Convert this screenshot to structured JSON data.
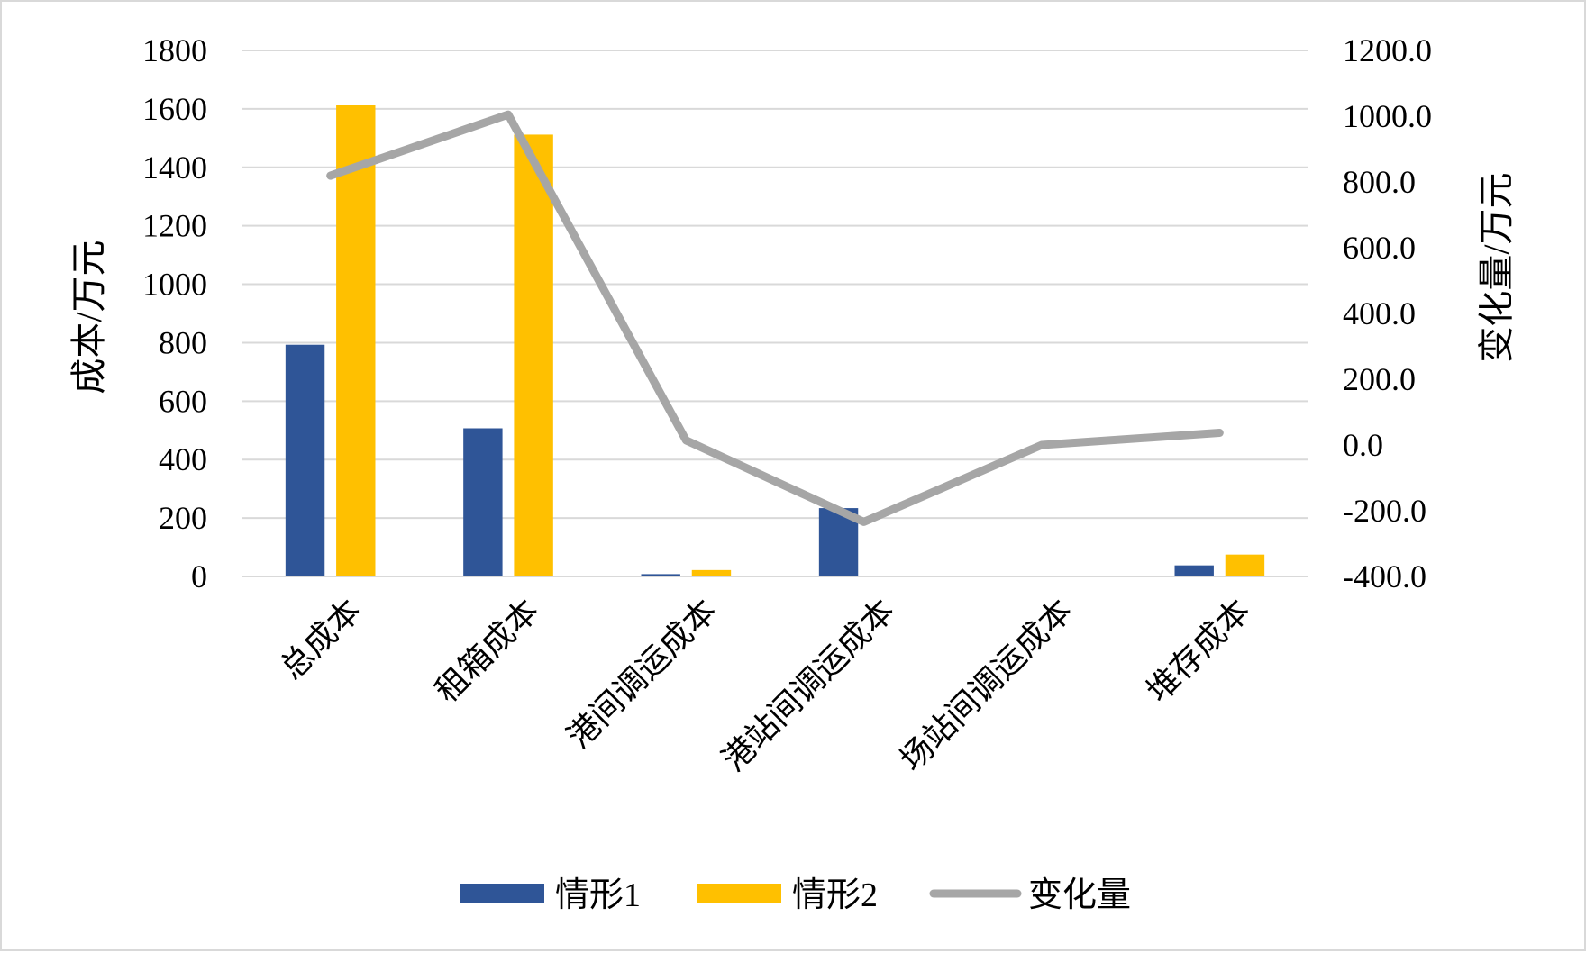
{
  "chart_data": {
    "type": "bar",
    "categories": [
      "总成本",
      "租箱成本",
      "港间调运成本",
      "港站间调运成本",
      "场站间调运成本",
      "堆存成本"
    ],
    "series": [
      {
        "name": "情形1",
        "type": "bar",
        "axis": "left",
        "color": "#2f5597",
        "values": [
          793,
          507,
          8,
          234,
          0,
          38
        ]
      },
      {
        "name": "情形2",
        "type": "bar",
        "axis": "left",
        "color": "#ffc000",
        "values": [
          1612,
          1512,
          22,
          0,
          0,
          75
        ]
      },
      {
        "name": "变化量",
        "type": "line",
        "axis": "right",
        "color": "#a6a6a6",
        "values": [
          819,
          1005,
          14,
          -234,
          0,
          37
        ]
      }
    ],
    "ylabel": "成本/万元",
    "y2label": "变化量/万元",
    "ylim": [
      0,
      1800
    ],
    "y2lim": [
      -400,
      1200
    ],
    "yticks": [
      "0",
      "200",
      "400",
      "600",
      "800",
      "1000",
      "1200",
      "1400",
      "1600",
      "1800"
    ],
    "y2ticks": [
      "-400.0",
      "-200.0",
      "0.0",
      "200.0",
      "400.0",
      "600.0",
      "800.0",
      "1000.0",
      "1200.0"
    ],
    "grid": true,
    "legend_position": "bottom"
  }
}
